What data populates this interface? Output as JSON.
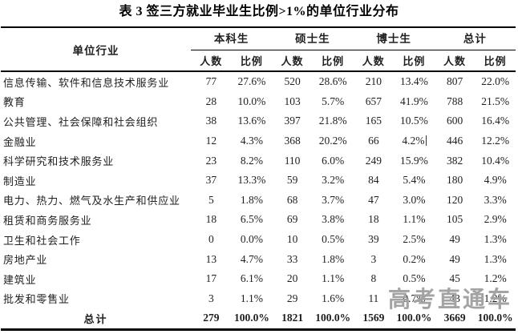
{
  "title": "表 3 签三方就业毕业生比例>1%的单位行业分布",
  "watermark": "高考直通车",
  "colors": {
    "text": "#1f1f1f",
    "border": "#000000",
    "watermark": "#a3a3a3",
    "background": "#ffffff"
  },
  "table": {
    "industry_header": "单位行业",
    "groups": [
      "本科生",
      "硕士生",
      "博士生",
      "总计"
    ],
    "subheaders": [
      "人数",
      "比例",
      "人数",
      "比例",
      "人数",
      "比例",
      "人数",
      "比例"
    ],
    "caret_cell": {
      "row": 3,
      "col": 5
    },
    "rows": [
      {
        "industry": "信息传输、软件和信息技术服务业",
        "values": [
          "77",
          "27.6%",
          "520",
          "28.6%",
          "210",
          "13.4%",
          "807",
          "22.0%"
        ]
      },
      {
        "industry": "教育",
        "values": [
          "28",
          "10.0%",
          "103",
          "5.7%",
          "657",
          "41.9%",
          "788",
          "21.5%"
        ]
      },
      {
        "industry": "公共管理、社会保障和社会组织",
        "values": [
          "38",
          "13.6%",
          "397",
          "21.8%",
          "165",
          "10.5%",
          "600",
          "16.4%"
        ]
      },
      {
        "industry": "金融业",
        "values": [
          "12",
          "4.3%",
          "368",
          "20.2%",
          "66",
          "4.2%",
          "446",
          "12.2%"
        ]
      },
      {
        "industry": "科学研究和技术服务业",
        "values": [
          "23",
          "8.2%",
          "110",
          "6.0%",
          "249",
          "15.9%",
          "382",
          "10.4%"
        ]
      },
      {
        "industry": "制造业",
        "values": [
          "37",
          "13.3%",
          "59",
          "3.2%",
          "84",
          "5.4%",
          "180",
          "4.9%"
        ]
      },
      {
        "industry": "电力、热力、燃气及水生产和供应业",
        "values": [
          "5",
          "1.8%",
          "68",
          "3.7%",
          "47",
          "3.0%",
          "120",
          "3.3%"
        ]
      },
      {
        "industry": "租赁和商务服务业",
        "values": [
          "18",
          "6.5%",
          "69",
          "3.8%",
          "18",
          "1.1%",
          "105",
          "2.9%"
        ]
      },
      {
        "industry": "卫生和社会工作",
        "values": [
          "0",
          "0.0%",
          "10",
          "0.5%",
          "39",
          "2.5%",
          "49",
          "1.3%"
        ]
      },
      {
        "industry": "房地产业",
        "values": [
          "13",
          "4.7%",
          "33",
          "1.8%",
          "3",
          "0.2%",
          "49",
          "1.3%"
        ]
      },
      {
        "industry": "建筑业",
        "values": [
          "17",
          "6.1%",
          "20",
          "1.1%",
          "8",
          "0.5%",
          "45",
          "1.2%"
        ]
      },
      {
        "industry": "批发和零售业",
        "values": [
          "3",
          "1.1%",
          "29",
          "1.6%",
          "11",
          "0.7%",
          "43",
          "1.2%"
        ]
      }
    ],
    "total": {
      "label": "总计",
      "values": [
        "279",
        "100.0%",
        "1821",
        "100.0%",
        "1569",
        "100.0%",
        "3669",
        "100.0%"
      ]
    }
  }
}
